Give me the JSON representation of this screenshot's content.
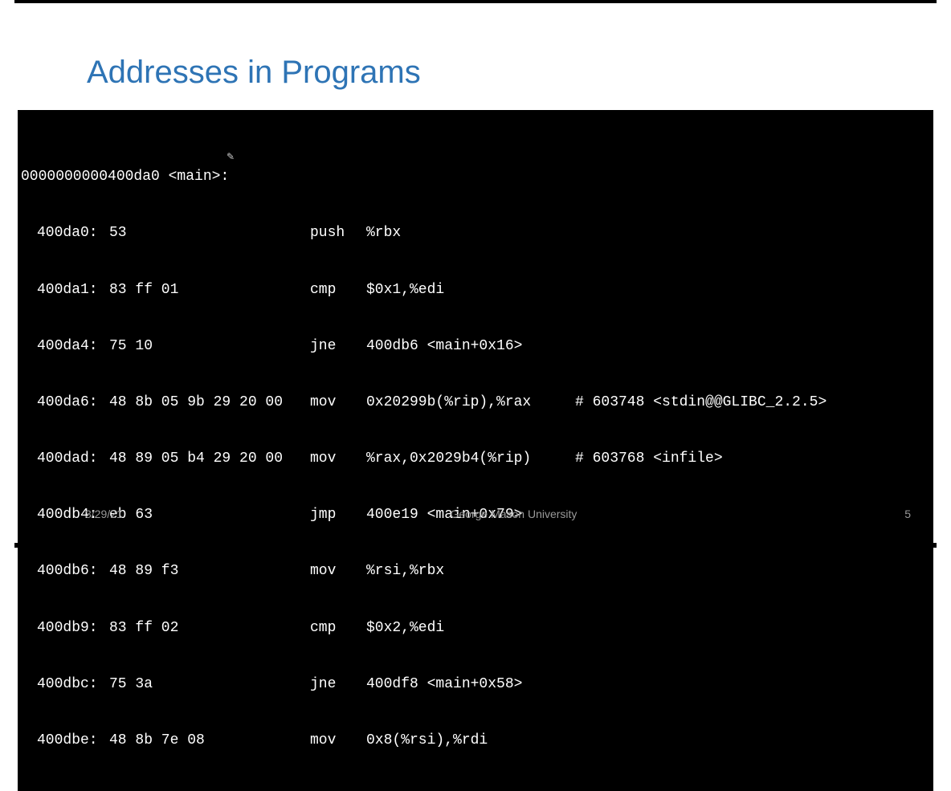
{
  "slide": {
    "title": "Addresses in Programs",
    "title_color": "#2e74b5",
    "background": "#ffffff",
    "code_bg": "#000000",
    "code_fg": "#ffffff",
    "code_fontsize": 18,
    "footer_color": "#999999"
  },
  "disasm": {
    "header": "0000000000400da0 <main>:",
    "rows": [
      {
        "addr": "400da0:",
        "hex": "53",
        "mnem": "push",
        "ops": "%rbx",
        "cmt": ""
      },
      {
        "addr": "400da1:",
        "hex": "83 ff 01",
        "mnem": "cmp",
        "ops": "$0x1,%edi",
        "cmt": ""
      },
      {
        "addr": "400da4:",
        "hex": "75 10",
        "mnem": "jne",
        "ops": "400db6 <main+0x16>",
        "cmt": ""
      },
      {
        "addr": "400da6:",
        "hex": "48 8b 05 9b 29 20 00",
        "mnem": "mov",
        "ops": "0x20299b(%rip),%rax",
        "cmt": "# 603748 <stdin@@GLIBC_2.2.5>"
      },
      {
        "addr": "400dad:",
        "hex": "48 89 05 b4 29 20 00",
        "mnem": "mov",
        "ops": "%rax,0x2029b4(%rip)",
        "cmt": "# 603768 <infile>"
      },
      {
        "addr": "400db4:",
        "hex": "eb 63",
        "mnem": "jmp",
        "ops": "400e19 <main+0x79>",
        "cmt": ""
      },
      {
        "addr": "400db6:",
        "hex": "48 89 f3",
        "mnem": "mov",
        "ops": "%rsi,%rbx",
        "cmt": ""
      },
      {
        "addr": "400db9:",
        "hex": "83 ff 02",
        "mnem": "cmp",
        "ops": "$0x2,%edi",
        "cmt": ""
      },
      {
        "addr": "400dbc:",
        "hex": "75 3a",
        "mnem": "jne",
        "ops": "400df8 <main+0x58>",
        "cmt": ""
      },
      {
        "addr": "400dbe:",
        "hex": "48 8b 7e 08",
        "mnem": "mov",
        "ops": "0x8(%rsi),%rdi",
        "cmt": ""
      }
    ]
  },
  "footer": {
    "date": "3/29/21",
    "org": "George Mason University",
    "page": "5"
  },
  "decorations": {
    "pencil_glyph": "✎"
  }
}
